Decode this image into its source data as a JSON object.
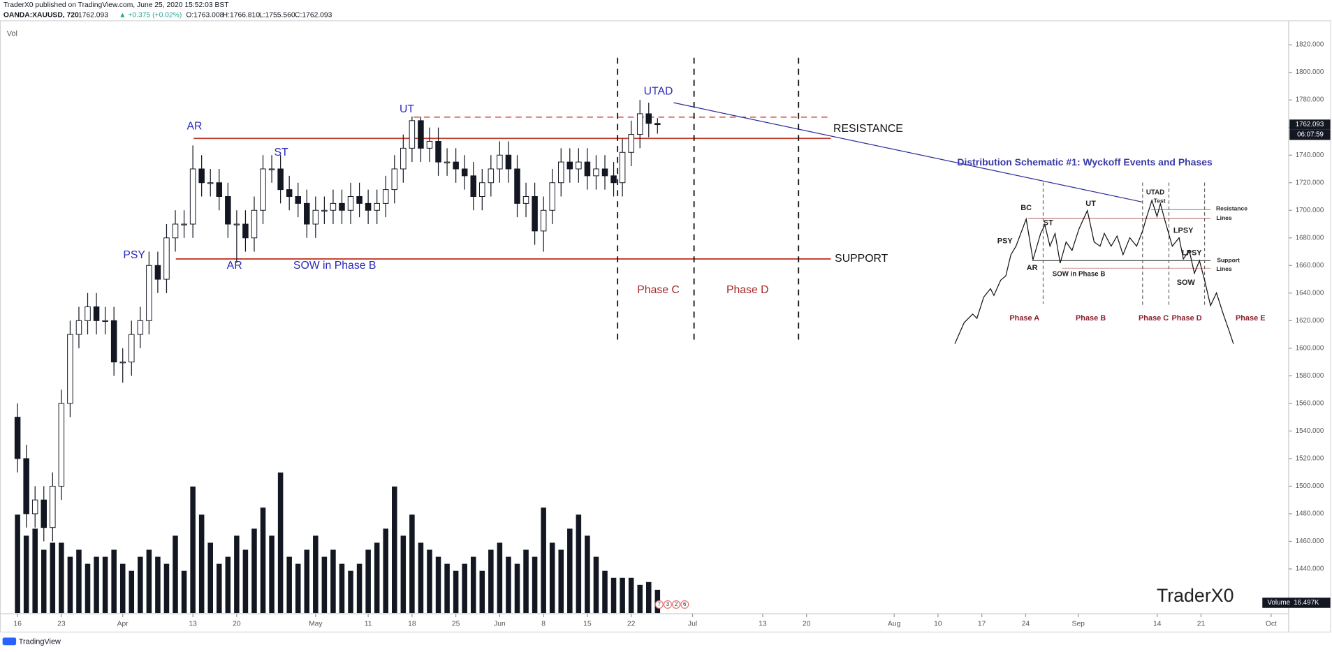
{
  "header": {
    "publisher": "TraderX0 published on TradingView.com, June 25, 2020 15:52:03 BST",
    "symbol": "OANDA:XAUUSD, 720",
    "last": "1762.093",
    "change": "▲ +0.375 (+0.02%)",
    "ohlc": [
      "O:1763.008",
      "H:1766.810",
      "L:1755.560",
      "C:1762.093"
    ],
    "vol_label": "Vol"
  },
  "chart_data": {
    "type": "candlestick",
    "x": [
      0,
      1,
      2,
      3,
      4,
      5,
      6,
      7,
      8,
      9,
      10,
      11,
      12,
      13,
      14,
      15,
      16,
      17,
      18,
      19,
      20,
      21,
      22,
      23,
      24,
      25,
      26,
      27,
      28,
      29,
      30,
      31,
      32,
      33,
      34,
      35,
      36,
      37,
      38,
      39,
      40,
      41,
      42,
      43,
      44,
      45,
      46,
      47,
      48,
      49,
      50,
      51,
      52,
      53,
      54,
      55,
      56,
      57,
      58,
      59,
      60,
      61,
      62,
      63,
      64,
      65,
      66,
      67,
      68,
      69,
      70,
      71,
      72,
      73
    ],
    "open": [
      1550,
      1520,
      1480,
      1490,
      1470,
      1500,
      1560,
      1610,
      1620,
      1630,
      1620,
      1620,
      1590,
      1590,
      1610,
      1620,
      1660,
      1650,
      1680,
      1690,
      1690,
      1730,
      1720,
      1720,
      1710,
      1690,
      1690,
      1680,
      1700,
      1730,
      1730,
      1715,
      1710,
      1705,
      1690,
      1700,
      1700,
      1705,
      1700,
      1710,
      1705,
      1700,
      1705,
      1715,
      1730,
      1745,
      1765,
      1745,
      1750,
      1735,
      1735,
      1730,
      1725,
      1710,
      1720,
      1730,
      1740,
      1730,
      1705,
      1710,
      1685,
      1700,
      1720,
      1735,
      1730,
      1735,
      1725,
      1730,
      1725,
      1720,
      1742,
      1755,
      1770,
      1763.008
    ],
    "high": [
      1560,
      1530,
      1500,
      1500,
      1510,
      1570,
      1620,
      1630,
      1640,
      1640,
      1630,
      1630,
      1600,
      1620,
      1630,
      1670,
      1670,
      1690,
      1700,
      1700,
      1747,
      1740,
      1730,
      1730,
      1720,
      1700,
      1700,
      1710,
      1740,
      1740,
      1740,
      1725,
      1720,
      1715,
      1710,
      1710,
      1715,
      1715,
      1720,
      1720,
      1715,
      1715,
      1725,
      1740,
      1755,
      1768,
      1768,
      1760,
      1760,
      1745,
      1745,
      1740,
      1735,
      1730,
      1740,
      1750,
      1750,
      1740,
      1720,
      1720,
      1710,
      1730,
      1745,
      1745,
      1745,
      1745,
      1740,
      1740,
      1735,
      1752,
      1765,
      1780,
      1778,
      1766.81
    ],
    "low": [
      1510,
      1470,
      1470,
      1460,
      1460,
      1490,
      1550,
      1600,
      1610,
      1610,
      1610,
      1580,
      1575,
      1580,
      1600,
      1610,
      1640,
      1640,
      1670,
      1680,
      1680,
      1710,
      1710,
      1700,
      1680,
      1662,
      1670,
      1670,
      1690,
      1720,
      1705,
      1700,
      1695,
      1680,
      1680,
      1690,
      1690,
      1690,
      1690,
      1695,
      1690,
      1690,
      1695,
      1705,
      1720,
      1735,
      1735,
      1735,
      1725,
      1725,
      1720,
      1715,
      1700,
      1700,
      1710,
      1720,
      1720,
      1695,
      1695,
      1675,
      1670,
      1690,
      1710,
      1720,
      1720,
      1715,
      1715,
      1715,
      1710,
      1710,
      1732,
      1745,
      1753,
      1755.56
    ],
    "close": [
      1520,
      1480,
      1490,
      1470,
      1500,
      1560,
      1610,
      1620,
      1630,
      1620,
      1620,
      1590,
      1590,
      1610,
      1620,
      1660,
      1650,
      1680,
      1690,
      1690,
      1730,
      1720,
      1720,
      1710,
      1690,
      1690,
      1680,
      1700,
      1730,
      1730,
      1715,
      1710,
      1705,
      1690,
      1700,
      1700,
      1705,
      1700,
      1710,
      1705,
      1700,
      1705,
      1715,
      1730,
      1745,
      1765,
      1745,
      1750,
      1735,
      1735,
      1730,
      1725,
      1710,
      1720,
      1730,
      1740,
      1730,
      1705,
      1710,
      1685,
      1700,
      1720,
      1735,
      1730,
      1735,
      1725,
      1730,
      1725,
      1720,
      1742,
      1755,
      1770,
      1763,
      1762.093
    ],
    "volume": {
      "name": "Volume",
      "values": [
        70,
        55,
        60,
        45,
        50,
        50,
        40,
        45,
        35,
        40,
        40,
        45,
        35,
        30,
        40,
        45,
        40,
        35,
        55,
        30,
        90,
        70,
        50,
        35,
        40,
        55,
        45,
        60,
        75,
        55,
        100,
        40,
        35,
        45,
        55,
        40,
        45,
        35,
        30,
        35,
        45,
        50,
        60,
        90,
        55,
        70,
        50,
        45,
        40,
        35,
        30,
        35,
        40,
        30,
        45,
        50,
        40,
        35,
        45,
        40,
        75,
        50,
        45,
        60,
        70,
        55,
        40,
        30,
        25,
        25,
        25,
        20,
        22,
        16.497
      ],
      "ylim": [
        0,
        110
      ],
      "last_label": "16.497K"
    },
    "ylim": [
      1397,
      1834
    ],
    "yticks": [
      {
        "value": 1440,
        "label": "1440.000"
      },
      {
        "value": 1460,
        "label": "1460.000"
      },
      {
        "value": 1480,
        "label": "1480.000"
      },
      {
        "value": 1500,
        "label": "1500.000"
      },
      {
        "value": 1520,
        "label": "1520.000"
      },
      {
        "value": 1540,
        "label": "1540.000"
      },
      {
        "value": 1560,
        "label": "1560.000"
      },
      {
        "value": 1580,
        "label": "1580.000"
      },
      {
        "value": 1600,
        "label": "1600.000"
      },
      {
        "value": 1620,
        "label": "1620.000"
      },
      {
        "value": 1640,
        "label": "1640.000"
      },
      {
        "value": 1660,
        "label": "1660.000"
      },
      {
        "value": 1680,
        "label": "1680.000"
      },
      {
        "value": 1700,
        "label": "1700.000"
      },
      {
        "value": 1720,
        "label": "1720.000"
      },
      {
        "value": 1740,
        "label": "1740.000"
      },
      {
        "value": 1760,
        "label": "1760.000"
      },
      {
        "value": 1780,
        "label": "1780.000"
      },
      {
        "value": 1800,
        "label": "1800.000"
      },
      {
        "value": 1820,
        "label": "1820.000"
      }
    ],
    "xlim": [
      -2,
      145
    ],
    "xticks": [
      {
        "value": 0,
        "label": "16"
      },
      {
        "value": 5,
        "label": "23"
      },
      {
        "value": 12,
        "label": "Apr"
      },
      {
        "value": 20,
        "label": "13"
      },
      {
        "value": 25,
        "label": "20"
      },
      {
        "value": 34,
        "label": "May"
      },
      {
        "value": 40,
        "label": "11"
      },
      {
        "value": 45,
        "label": "18"
      },
      {
        "value": 50,
        "label": "25"
      },
      {
        "value": 55,
        "label": "Jun"
      },
      {
        "value": 60,
        "label": "8"
      },
      {
        "value": 65,
        "label": "15"
      },
      {
        "value": 70,
        "label": "22"
      },
      {
        "value": 77,
        "label": "Jul"
      },
      {
        "value": 85,
        "label": "13"
      },
      {
        "value": 90,
        "label": "20"
      },
      {
        "value": 100,
        "label": "Aug"
      },
      {
        "value": 105,
        "label": "10"
      },
      {
        "value": 110,
        "label": "17"
      },
      {
        "value": 115,
        "label": "24"
      },
      {
        "value": 121,
        "label": "Sep"
      },
      {
        "value": 130,
        "label": "14"
      },
      {
        "value": 135,
        "label": "21"
      },
      {
        "value": 143,
        "label": "Oct"
      }
    ],
    "last_price_label": "1762.093",
    "countdown": "06:07:59",
    "up_color": "#ffffff",
    "down_color": "#131722",
    "annotations": [
      "AR",
      "PSY",
      "AR",
      "ST",
      "UT",
      "SOW in Phase B",
      "UTAD",
      "Phase C",
      "Phase D",
      "RESISTANCE",
      "SUPPORT"
    ],
    "event_badges": [
      "7",
      "3",
      "2",
      "6"
    ]
  },
  "inset": {
    "title": "Distribution Schematic #1: Wyckoff Events and Phases",
    "labels": [
      "BC",
      "ST",
      "UT",
      "UTAD",
      "Test",
      "PSY",
      "AR",
      "SOW in Phase B",
      "LPSY",
      "LPSY",
      "SOW",
      "Resistance",
      "Lines",
      "Support",
      "Lines"
    ],
    "phases": [
      "Phase A",
      "Phase B",
      "Phase C",
      "Phase D",
      "Phase E"
    ]
  },
  "watermark": "TraderX0",
  "footer": "TradingView"
}
